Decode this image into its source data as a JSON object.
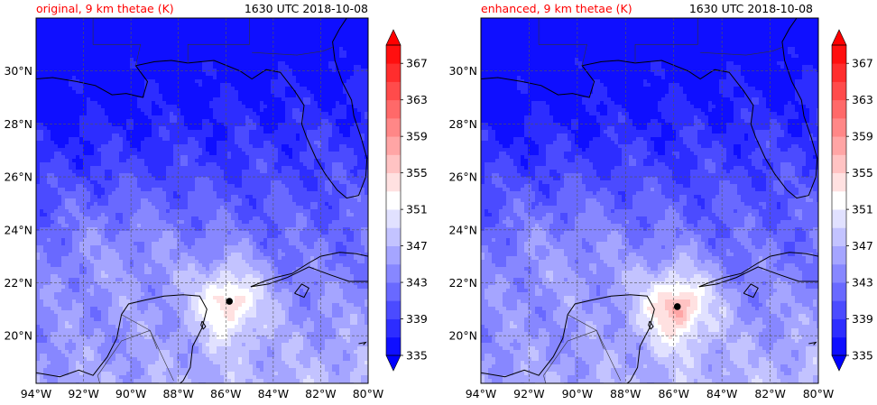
{
  "panels": [
    {
      "title_left": "original, 9 km thetae (K)",
      "title_right": "1630 UTC 2018-10-08",
      "storm_center": {
        "lon": -85.85,
        "lat": 21.3
      },
      "warm_core_intensity": "weak"
    },
    {
      "title_left": "enhanced, 9 km thetae (K)",
      "title_right": "1630 UTC 2018-10-08",
      "storm_center": {
        "lon": -85.85,
        "lat": 21.1
      },
      "warm_core_intensity": "strong"
    }
  ],
  "map": {
    "lon_range": [
      -94,
      -80
    ],
    "lat_range": [
      18.2,
      32
    ],
    "lon_ticks": [
      "94°W",
      "92°W",
      "90°W",
      "88°W",
      "86°W",
      "84°W",
      "82°W",
      "80°W"
    ],
    "lat_ticks": [
      "20°N",
      "22°N",
      "24°N",
      "26°N",
      "28°N",
      "30°N"
    ],
    "grid": "dashed"
  },
  "colorbar": {
    "min": 335,
    "max": 369,
    "step": 2,
    "tick_labels": [
      "335",
      "339",
      "343",
      "347",
      "351",
      "355",
      "359",
      "363",
      "367"
    ],
    "extend": "both",
    "colormap": "bwr"
  },
  "colors": {
    "title_variable": "#ff0000",
    "marker": "#000000"
  }
}
